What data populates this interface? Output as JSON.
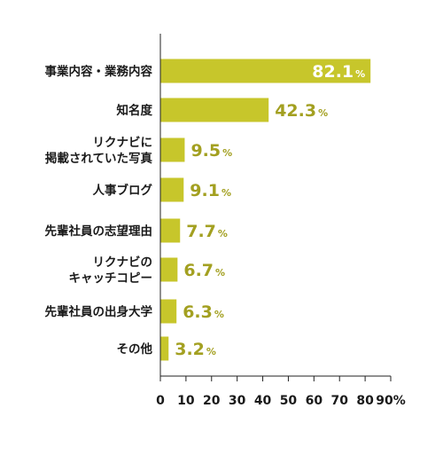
{
  "chart_data": {
    "type": "bar",
    "orientation": "horizontal",
    "title": "",
    "xlabel": "",
    "ylabel": "",
    "categories": [
      [
        "事業内容・業務内容"
      ],
      [
        "知名度"
      ],
      [
        "リクナビに",
        "掲載されていた写真"
      ],
      [
        "人事ブログ"
      ],
      [
        "先輩社員の志望理由"
      ],
      [
        "リクナビの",
        "キャッチコピー"
      ],
      [
        "先輩社員の出身大学"
      ],
      [
        "その他"
      ]
    ],
    "values": [
      82.1,
      42.3,
      9.5,
      9.1,
      7.7,
      6.7,
      6.3,
      3.2
    ],
    "value_labels": [
      "82.1",
      "42.3",
      "9.5",
      "9.1",
      "7.7",
      "6.7",
      "6.3",
      "3.2"
    ],
    "value_unit": "%",
    "xlim": [
      0,
      90
    ],
    "x_ticks": [
      "0",
      "10",
      "20",
      "30",
      "40",
      "50",
      "60",
      "70",
      "80",
      "90%"
    ],
    "grid": false,
    "legend": "none",
    "colors": {
      "bar": "#c7c62b",
      "value_label_outside": "#a3a021",
      "value_label_inside": "#ffffff",
      "axis": "#222222"
    }
  }
}
